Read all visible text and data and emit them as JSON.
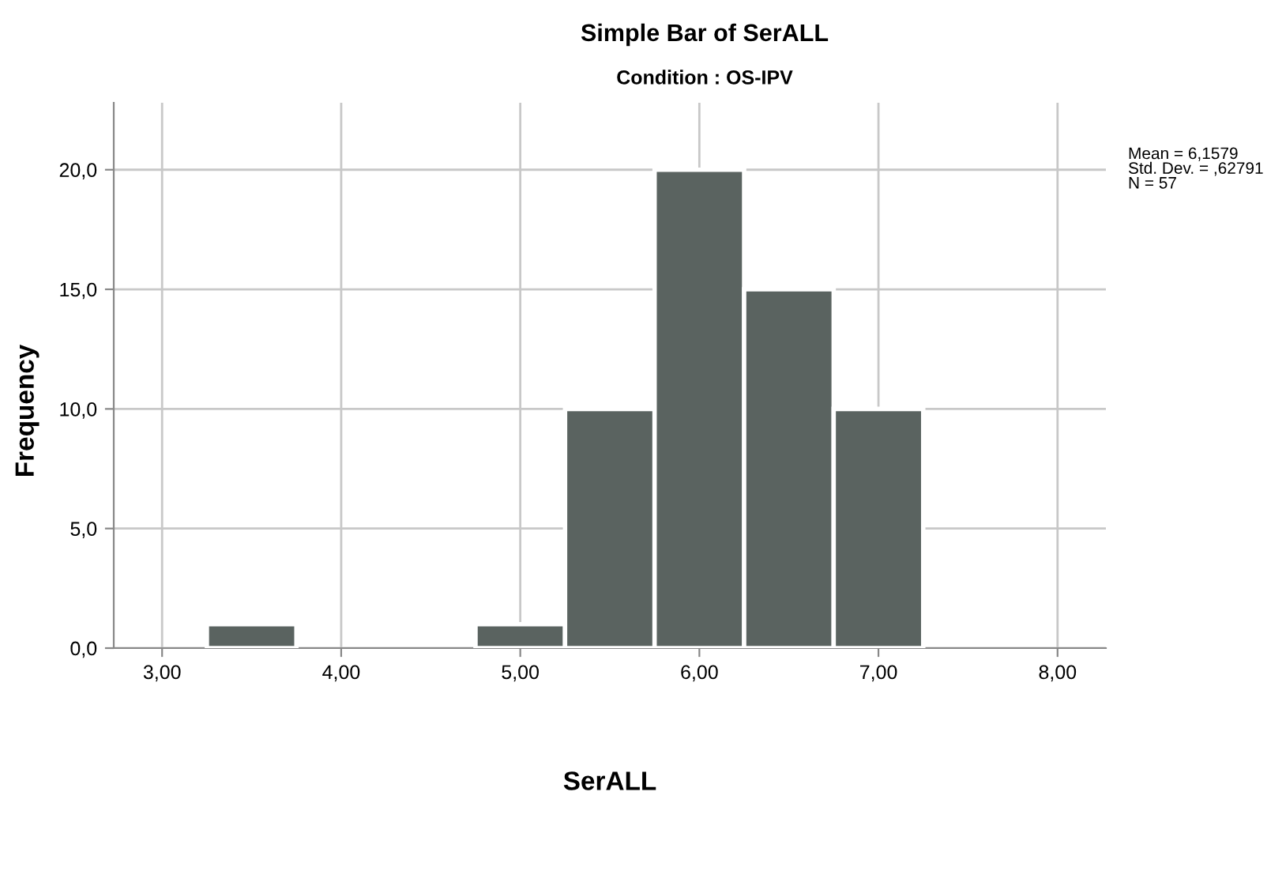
{
  "chart_data": {
    "type": "histogram",
    "title": "Simple Bar of SerALL",
    "subtitle": "Condition : OS-IPV",
    "xlabel": "SerALL",
    "ylabel": "Frequency",
    "bins": [
      3.25,
      3.75,
      4.25,
      4.75,
      5.25,
      5.75,
      6.25,
      6.75,
      7.25
    ],
    "values": [
      1,
      0,
      0,
      1,
      10,
      20,
      15,
      10
    ],
    "color": "#5a6360",
    "xlim": [
      2.73,
      8.27
    ],
    "ylim": [
      0,
      22.8
    ],
    "xticks": [
      {
        "value": 3,
        "label": "3,00"
      },
      {
        "value": 4,
        "label": "4,00"
      },
      {
        "value": 5,
        "label": "5,00"
      },
      {
        "value": 6,
        "label": "6,00"
      },
      {
        "value": 7,
        "label": "7,00"
      },
      {
        "value": 8,
        "label": "8,00"
      }
    ],
    "yticks": [
      {
        "value": 0,
        "label": "0,0"
      },
      {
        "value": 5,
        "label": "5,0"
      },
      {
        "value": 10,
        "label": "10,0"
      },
      {
        "value": 15,
        "label": "15,0"
      },
      {
        "value": 20,
        "label": "20,0"
      }
    ],
    "grid": true,
    "legend": false,
    "annotations": [
      "Mean = 6,1579",
      "Std. Dev. = ,62791",
      "N = 57"
    ]
  }
}
